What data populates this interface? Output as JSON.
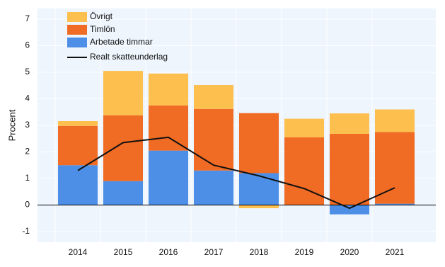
{
  "chart_data": {
    "type": "stacked-bar",
    "y_label": "Procent",
    "categories": [
      "2014",
      "2015",
      "2016",
      "2017",
      "2018",
      "2019",
      "2020",
      "2021"
    ],
    "series": [
      {
        "name": "Arbetade timmar",
        "color": "#4d8fe6",
        "values": [
          1.5,
          0.9,
          2.05,
          1.3,
          1.2,
          0,
          -0.35,
          0.05
        ]
      },
      {
        "name": "Timlön",
        "color": "#f06b24",
        "values": [
          1.48,
          2.48,
          1.7,
          2.32,
          2.26,
          2.55,
          2.68,
          2.7
        ]
      },
      {
        "name": "Övrigt",
        "color": "#fdbf4e",
        "values": [
          0.18,
          1.67,
          1.2,
          0.9,
          -0.12,
          0.7,
          0.77,
          0.85
        ]
      }
    ],
    "line": {
      "name": "Realt skatteunderlag",
      "color": "#111111",
      "values": [
        1.3,
        2.35,
        2.55,
        1.5,
        1.1,
        0.62,
        -0.12,
        0.65
      ]
    },
    "ylim": [
      -1.4,
      7.4
    ],
    "yticks": [
      -1,
      0,
      1,
      2,
      3,
      4,
      5,
      6,
      7
    ],
    "grid": true
  }
}
